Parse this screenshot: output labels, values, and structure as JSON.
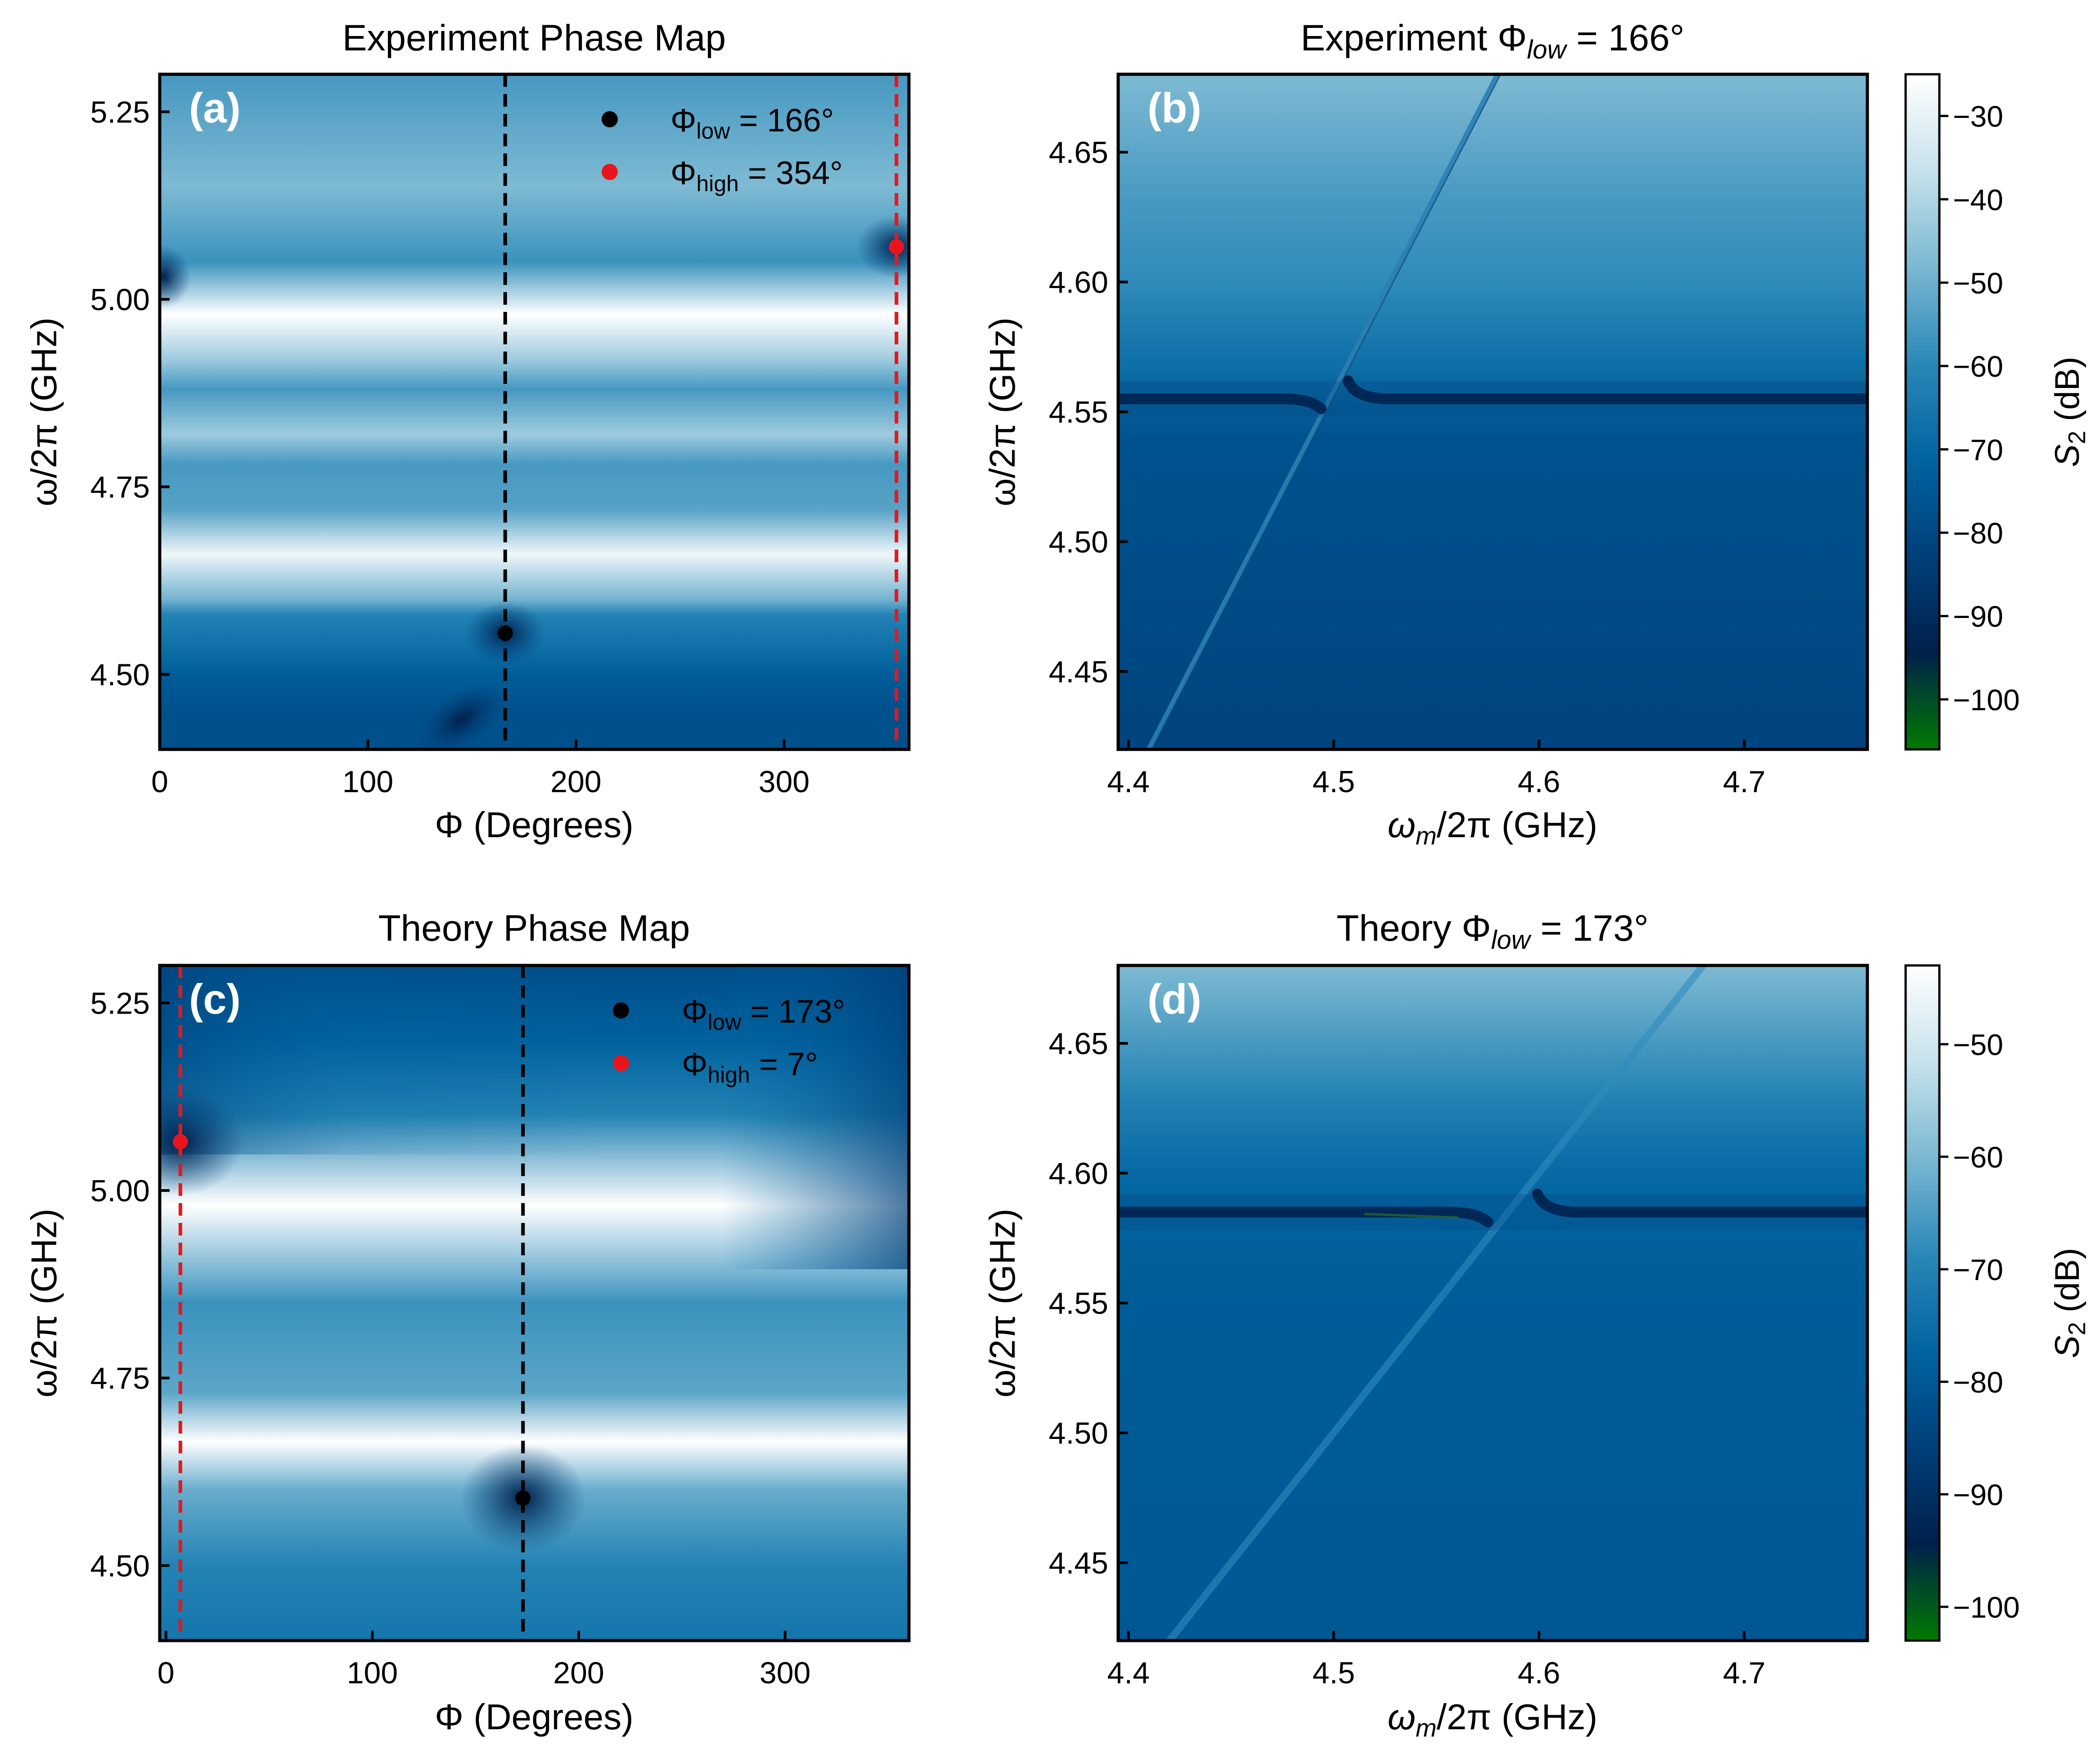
{
  "figure": {
    "colors": {
      "cmap_stops": [
        "#007a00",
        "#00204a",
        "#003f7a",
        "#0064a0",
        "#2a88b8",
        "#7bb8d2",
        "#c6e2ec",
        "#ffffff"
      ],
      "black_line": "#000000",
      "red_line": "#e8161c",
      "panel_label": "#ffffff"
    }
  },
  "chart_data": [
    {
      "id": "a",
      "type": "heatmap",
      "panel_label": "(a)",
      "title": "Experiment Phase Map",
      "xlabel": "Φ (Degrees)",
      "ylabel": "ω/2π (GHz)",
      "xlim": [
        0,
        360
      ],
      "ylim": [
        4.4,
        5.3
      ],
      "xticks": [
        {
          "value": 0,
          "label": "0"
        },
        {
          "value": 100,
          "label": "100"
        },
        {
          "value": 200,
          "label": "200"
        },
        {
          "value": 300,
          "label": "300"
        }
      ],
      "yticks": [
        {
          "value": 4.5,
          "label": "4.50"
        },
        {
          "value": 4.75,
          "label": "4.75"
        },
        {
          "value": 5.0,
          "label": "5.00"
        },
        {
          "value": 5.25,
          "label": "5.25"
        }
      ],
      "markers": [
        {
          "name": "low",
          "x": 166,
          "y": 4.555,
          "color": "black",
          "legend_main": "Φ",
          "legend_sub": "low",
          "legend_rest": " = 166°"
        },
        {
          "name": "high",
          "x": 354,
          "y": 5.07,
          "color": "red",
          "legend_main": "Φ",
          "legend_sub": "high",
          "legend_rest": " = 354°"
        }
      ],
      "vlines": [
        {
          "x": 166,
          "color": "black"
        },
        {
          "x": 354,
          "color": "red"
        }
      ],
      "legend_position": "upper-right",
      "bands": [
        {
          "y": 4.45,
          "v": 0.35
        },
        {
          "y": 4.5,
          "v": 0.4
        },
        {
          "y": 4.55,
          "v": 0.5
        },
        {
          "y": 4.58,
          "v": 0.55
        },
        {
          "y": 4.6,
          "v": 0.7
        },
        {
          "y": 4.66,
          "v": 0.96
        },
        {
          "y": 4.72,
          "v": 0.65
        },
        {
          "y": 4.78,
          "v": 0.62
        },
        {
          "y": 4.82,
          "v": 0.78
        },
        {
          "y": 4.88,
          "v": 0.62
        },
        {
          "y": 4.92,
          "v": 0.78
        },
        {
          "y": 4.98,
          "v": 1.0
        },
        {
          "y": 5.05,
          "v": 0.6
        },
        {
          "y": 5.15,
          "v": 0.72
        },
        {
          "y": 5.3,
          "v": 0.62
        }
      ]
    },
    {
      "id": "b",
      "type": "heatmap",
      "panel_label": "(b)",
      "title_main": "Experiment Φ",
      "title_sub": "low",
      "title_rest": " = 166°",
      "xlabel_main": "ω",
      "xlabel_sub": "m",
      "xlabel_rest": "/2π (GHz)",
      "ylabel": "ω/2π (GHz)",
      "xlim": [
        4.395,
        4.76
      ],
      "ylim": [
        4.42,
        4.68
      ],
      "xticks": [
        {
          "value": 4.4,
          "label": "4.4"
        },
        {
          "value": 4.5,
          "label": "4.5"
        },
        {
          "value": 4.6,
          "label": "4.6"
        },
        {
          "value": 4.7,
          "label": "4.7"
        }
      ],
      "yticks": [
        {
          "value": 4.45,
          "label": "4.45"
        },
        {
          "value": 4.5,
          "label": "4.50"
        },
        {
          "value": 4.55,
          "label": "4.55"
        },
        {
          "value": 4.6,
          "label": "4.60"
        },
        {
          "value": 4.65,
          "label": "4.65"
        }
      ],
      "mode_y": 4.555,
      "diagonal": [
        [
          4.41,
          4.42
        ],
        [
          4.58,
          4.68
        ]
      ],
      "colorbar": {
        "label": "S",
        "label_sub": "2",
        "label_rest": " (dB)",
        "range": [
          -106,
          -25
        ],
        "ticks": [
          -30,
          -40,
          -50,
          -60,
          -70,
          -80,
          -90,
          -100
        ],
        "tick_labels": [
          "−30",
          "−40",
          "−50",
          "−60",
          "−70",
          "−80",
          "−90",
          "−100"
        ]
      },
      "bands": [
        {
          "y": 4.42,
          "v": 0.3
        },
        {
          "y": 4.49,
          "v": 0.34
        },
        {
          "y": 4.54,
          "v": 0.36
        },
        {
          "y": 4.57,
          "v": 0.48
        },
        {
          "y": 4.6,
          "v": 0.58
        },
        {
          "y": 4.63,
          "v": 0.62
        },
        {
          "y": 4.68,
          "v": 0.72
        }
      ]
    },
    {
      "id": "c",
      "type": "heatmap",
      "panel_label": "(c)",
      "title": "Theory Phase Map",
      "xlabel": "Φ (Degrees)",
      "ylabel": "ω/2π (GHz)",
      "xlim": [
        -3,
        360
      ],
      "ylim": [
        4.4,
        5.3
      ],
      "xticks": [
        {
          "value": 0,
          "label": "0"
        },
        {
          "value": 100,
          "label": "100"
        },
        {
          "value": 200,
          "label": "200"
        },
        {
          "value": 300,
          "label": "300"
        }
      ],
      "yticks": [
        {
          "value": 4.5,
          "label": "4.50"
        },
        {
          "value": 4.75,
          "label": "4.75"
        },
        {
          "value": 5.0,
          "label": "5.00"
        },
        {
          "value": 5.25,
          "label": "5.25"
        }
      ],
      "markers": [
        {
          "name": "low",
          "x": 173,
          "y": 4.59,
          "color": "black",
          "legend_main": "Φ",
          "legend_sub": "low",
          "legend_rest": " = 173°"
        },
        {
          "name": "high",
          "x": 7,
          "y": 5.065,
          "color": "red",
          "legend_main": "Φ",
          "legend_sub": "high",
          "legend_rest": " = 7°"
        }
      ],
      "vlines": [
        {
          "x": 173,
          "color": "black"
        },
        {
          "x": 7,
          "color": "red"
        }
      ],
      "legend_position": "upper-right",
      "bands": [
        {
          "y": 4.4,
          "v": 0.5
        },
        {
          "y": 4.5,
          "v": 0.55
        },
        {
          "y": 4.6,
          "v": 0.68
        },
        {
          "y": 4.665,
          "v": 1.0
        },
        {
          "y": 4.73,
          "v": 0.66
        },
        {
          "y": 4.85,
          "v": 0.6
        },
        {
          "y": 4.98,
          "v": 1.0
        },
        {
          "y": 5.1,
          "v": 0.55
        },
        {
          "y": 5.2,
          "v": 0.42
        },
        {
          "y": 5.3,
          "v": 0.34
        }
      ]
    },
    {
      "id": "d",
      "type": "heatmap",
      "panel_label": "(d)",
      "title_main": "Theory Φ",
      "title_sub": "low",
      "title_rest": " = 173°",
      "xlabel_main": "ω",
      "xlabel_sub": "m",
      "xlabel_rest": "/2π (GHz)",
      "ylabel": "ω/2π (GHz)",
      "xlim": [
        4.395,
        4.76
      ],
      "ylim": [
        4.42,
        4.68
      ],
      "xticks": [
        {
          "value": 4.4,
          "label": "4.4"
        },
        {
          "value": 4.5,
          "label": "4.5"
        },
        {
          "value": 4.6,
          "label": "4.6"
        },
        {
          "value": 4.7,
          "label": "4.7"
        }
      ],
      "yticks": [
        {
          "value": 4.45,
          "label": "4.45"
        },
        {
          "value": 4.5,
          "label": "4.50"
        },
        {
          "value": 4.55,
          "label": "4.55"
        },
        {
          "value": 4.6,
          "label": "4.60"
        },
        {
          "value": 4.65,
          "label": "4.65"
        }
      ],
      "mode_y": 4.585,
      "diagonal": [
        [
          4.42,
          4.42
        ],
        [
          4.68,
          4.68
        ]
      ],
      "colorbar": {
        "label": "S",
        "label_sub": "2",
        "label_rest": " (dB)",
        "range": [
          -103,
          -43
        ],
        "ticks": [
          -50,
          -60,
          -70,
          -80,
          -90,
          -100
        ],
        "tick_labels": [
          "−50",
          "−60",
          "−70",
          "−80",
          "−90",
          "−100"
        ]
      },
      "bands": [
        {
          "y": 4.42,
          "v": 0.38
        },
        {
          "y": 4.56,
          "v": 0.4
        },
        {
          "y": 4.6,
          "v": 0.45
        },
        {
          "y": 4.63,
          "v": 0.55
        },
        {
          "y": 4.68,
          "v": 0.72
        }
      ]
    }
  ]
}
